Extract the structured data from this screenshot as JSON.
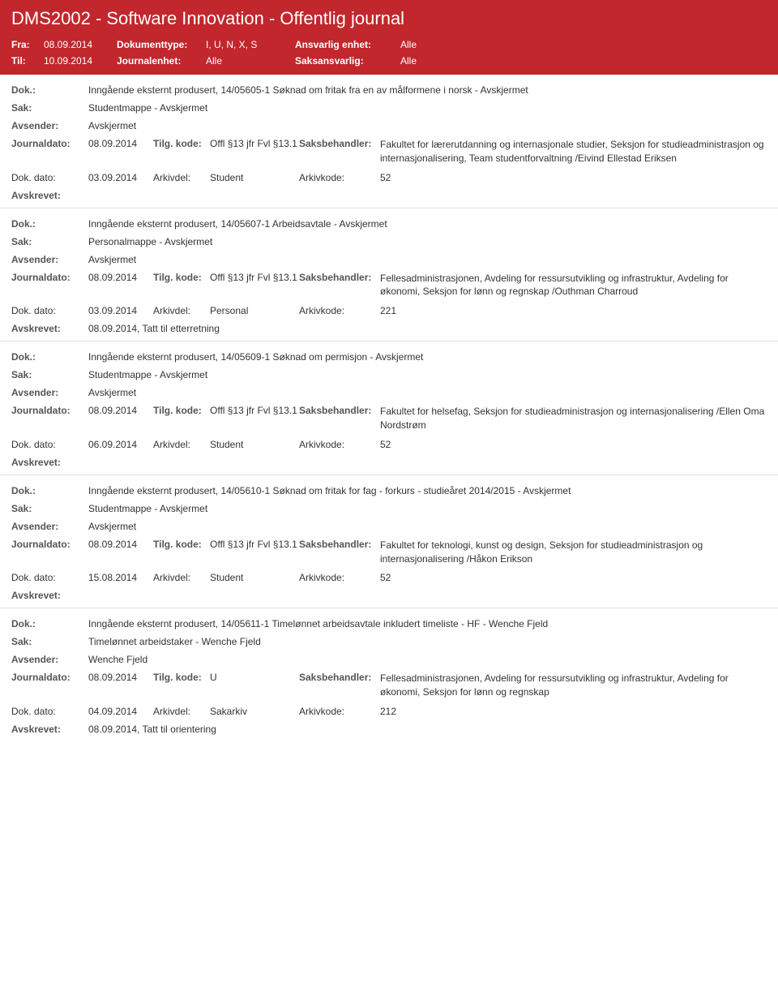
{
  "header": {
    "title": "DMS2002 - Software Innovation - Offentlig journal"
  },
  "filter": {
    "fra_label": "Fra:",
    "fra_value": "08.09.2014",
    "til_label": "Til:",
    "til_value": "10.09.2014",
    "doktype_label": "Dokumenttype:",
    "doktype_value": "I, U, N, X, S",
    "journalenhet_label": "Journalenhet:",
    "journalenhet_value": "Alle",
    "ansvarlig_label": "Ansvarlig enhet:",
    "ansvarlig_value": "Alle",
    "saksansvarlig_label": "Saksansvarlig:",
    "saksansvarlig_value": "Alle"
  },
  "labels": {
    "dok": "Dok.:",
    "sak": "Sak:",
    "avsender": "Avsender:",
    "journaldato": "Journaldato:",
    "tilgkode": "Tilg. kode:",
    "saksbehandler": "Saksbehandler:",
    "dokdato": "Dok. dato:",
    "arkivdel": "Arkivdel:",
    "arkivkode": "Arkivkode:",
    "avskrevet": "Avskrevet:"
  },
  "entries": [
    {
      "dok": "Inngående eksternt produsert, 14/05605-1 Søknad om fritak fra en av målformene i norsk - Avskjermet",
      "sak": "Studentmappe - Avskjermet",
      "avsender": "Avskjermet",
      "journaldato": "08.09.2014",
      "tilgkode": "Offl §13 jfr Fvl §13.1",
      "saksbehandler": "Fakultet for lærerutdanning og internasjonale studier, Seksjon for studieadministrasjon og internasjonalisering, Team studentforvaltning /Eivind Ellestad Eriksen",
      "dokdato": "03.09.2014",
      "arkivdel": "Student",
      "arkivkode": "52",
      "avskrevet": ""
    },
    {
      "dok": "Inngående eksternt produsert, 14/05607-1 Arbeidsavtale - Avskjermet",
      "sak": "Personalmappe - Avskjermet",
      "avsender": "Avskjermet",
      "journaldato": "08.09.2014",
      "tilgkode": "Offl §13 jfr Fvl §13.1",
      "saksbehandler": "Fellesadministrasjonen, Avdeling for ressursutvikling og infrastruktur, Avdeling for økonomi, Seksjon for lønn og regnskap /Outhman Charroud",
      "dokdato": "03.09.2014",
      "arkivdel": "Personal",
      "arkivkode": "221",
      "avskrevet": "08.09.2014, Tatt til etterretning"
    },
    {
      "dok": "Inngående eksternt produsert, 14/05609-1 Søknad om permisjon - Avskjermet",
      "sak": "Studentmappe - Avskjermet",
      "avsender": "Avskjermet",
      "journaldato": "08.09.2014",
      "tilgkode": "Offl §13 jfr Fvl §13.1",
      "saksbehandler": "Fakultet for helsefag, Seksjon for studieadministrasjon og internasjonalisering /Ellen Oma Nordstrøm",
      "dokdato": "06.09.2014",
      "arkivdel": "Student",
      "arkivkode": "52",
      "avskrevet": ""
    },
    {
      "dok": "Inngående eksternt produsert, 14/05610-1 Søknad om fritak for fag - forkurs - studieåret 2014/2015 - Avskjermet",
      "sak": "Studentmappe - Avskjermet",
      "avsender": "Avskjermet",
      "journaldato": "08.09.2014",
      "tilgkode": "Offl §13 jfr Fvl §13.1",
      "saksbehandler": "Fakultet for teknologi, kunst og design, Seksjon for studieadministrasjon og internasjonalisering /Håkon Erikson",
      "dokdato": "15.08.2014",
      "arkivdel": "Student",
      "arkivkode": "52",
      "avskrevet": ""
    },
    {
      "dok": "Inngående eksternt produsert, 14/05611-1 Timelønnet arbeidsavtale inkludert timeliste - HF - Wenche Fjeld",
      "sak": "Timelønnet arbeidstaker - Wenche Fjeld",
      "avsender": "Wenche Fjeld",
      "journaldato": "08.09.2014",
      "tilgkode": "U",
      "saksbehandler": "Fellesadministrasjonen, Avdeling for ressursutvikling og infrastruktur, Avdeling for økonomi, Seksjon for lønn og regnskap",
      "dokdato": "04.09.2014",
      "arkivdel": "Sakarkiv",
      "arkivkode": "212",
      "avskrevet": "08.09.2014, Tatt til orientering"
    }
  ]
}
